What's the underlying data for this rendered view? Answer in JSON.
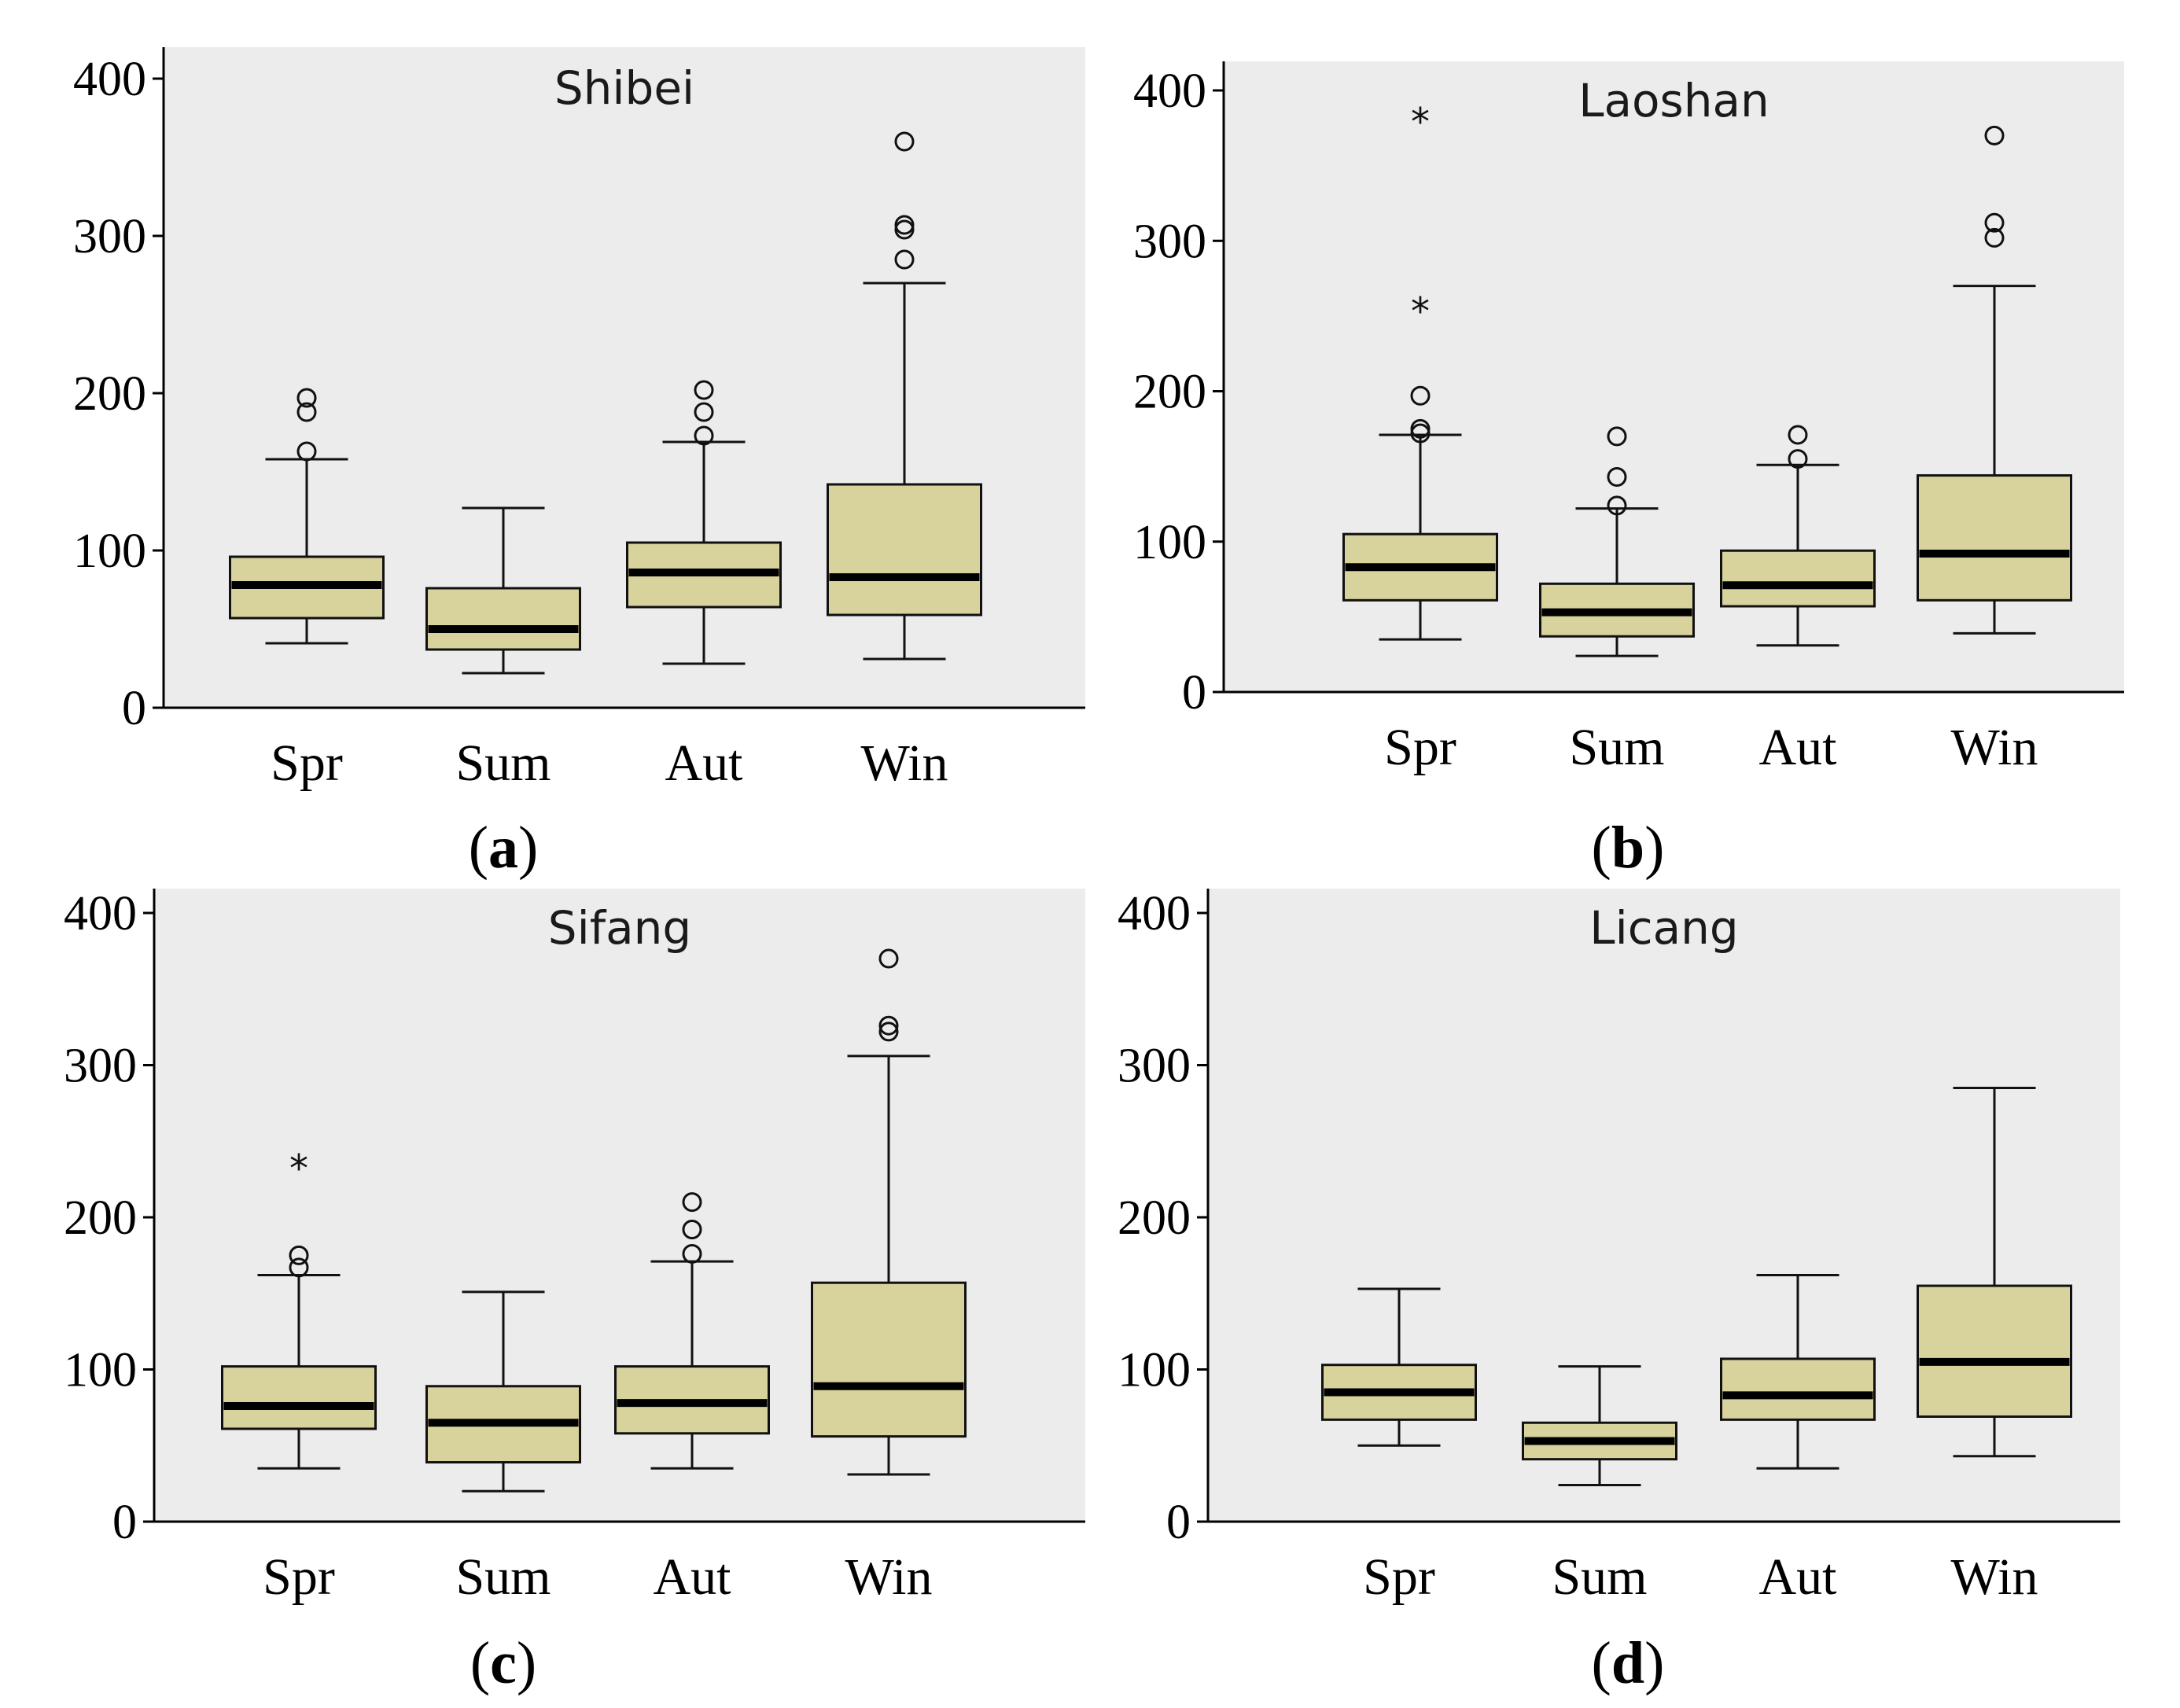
{
  "chart_data": [
    {
      "type": "boxplot",
      "panel_label": "a",
      "title": "Shibei",
      "categories": [
        "Spr",
        "Sum",
        "Aut",
        "Win"
      ],
      "yticks": [
        "0",
        "100",
        "200",
        "300",
        "400"
      ],
      "ylim": [
        0,
        400
      ],
      "boxes": [
        {
          "name": "Spr",
          "min": 41,
          "q1": 57,
          "median": 78,
          "q3": 96,
          "max": 158,
          "outliers": [
            163,
            188,
            197
          ],
          "extremes": []
        },
        {
          "name": "Sum",
          "min": 22,
          "q1": 37,
          "median": 50,
          "q3": 76,
          "max": 127,
          "outliers": [],
          "extremes": []
        },
        {
          "name": "Aut",
          "min": 28,
          "q1": 64,
          "median": 86,
          "q3": 105,
          "max": 169,
          "outliers": [
            173,
            188,
            202
          ],
          "extremes": []
        },
        {
          "name": "Win",
          "min": 31,
          "q1": 59,
          "median": 83,
          "q3": 142,
          "max": 270,
          "outliers": [
            285,
            304,
            307,
            360
          ],
          "extremes": []
        }
      ]
    },
    {
      "type": "boxplot",
      "panel_label": "b",
      "title": "Laoshan",
      "categories": [
        "Spr",
        "Sum",
        "Aut",
        "Win"
      ],
      "yticks": [
        "0",
        "100",
        "200",
        "300",
        "400"
      ],
      "ylim": [
        0,
        400
      ],
      "boxes": [
        {
          "name": "Spr",
          "min": 35,
          "q1": 61,
          "median": 83,
          "q3": 105,
          "max": 171,
          "outliers": [
            172,
            175,
            197
          ],
          "extremes": [
            256,
            382
          ]
        },
        {
          "name": "Sum",
          "min": 24,
          "q1": 37,
          "median": 53,
          "q3": 72,
          "max": 122,
          "outliers": [
            124,
            143,
            170
          ],
          "extremes": []
        },
        {
          "name": "Aut",
          "min": 31,
          "q1": 57,
          "median": 71,
          "q3": 94,
          "max": 151,
          "outliers": [
            155,
            171
          ],
          "extremes": []
        },
        {
          "name": "Win",
          "min": 39,
          "q1": 61,
          "median": 92,
          "q3": 144,
          "max": 270,
          "outliers": [
            302,
            312,
            370
          ],
          "extremes": []
        }
      ]
    },
    {
      "type": "boxplot",
      "panel_label": "c",
      "title": "Sifang",
      "categories": [
        "Spr",
        "Sum",
        "Aut",
        "Win"
      ],
      "yticks": [
        "0",
        "100",
        "200",
        "300",
        "400"
      ],
      "ylim": [
        0,
        400
      ],
      "boxes": [
        {
          "name": "Spr",
          "min": 35,
          "q1": 61,
          "median": 76,
          "q3": 102,
          "max": 162,
          "outliers": [
            167,
            175
          ],
          "extremes": [
            235
          ]
        },
        {
          "name": "Sum",
          "min": 20,
          "q1": 39,
          "median": 65,
          "q3": 89,
          "max": 151,
          "outliers": [],
          "extremes": []
        },
        {
          "name": "Aut",
          "min": 35,
          "q1": 58,
          "median": 78,
          "q3": 102,
          "max": 171,
          "outliers": [
            176,
            192,
            210
          ],
          "extremes": []
        },
        {
          "name": "Win",
          "min": 31,
          "q1": 56,
          "median": 89,
          "q3": 157,
          "max": 306,
          "outliers": [
            322,
            326,
            370
          ],
          "extremes": []
        }
      ]
    },
    {
      "type": "boxplot",
      "panel_label": "d",
      "title": "Licang",
      "categories": [
        "Spr",
        "Sum",
        "Aut",
        "Win"
      ],
      "yticks": [
        "0",
        "100",
        "200",
        "300",
        "400"
      ],
      "ylim": [
        0,
        400
      ],
      "boxes": [
        {
          "name": "Spr",
          "min": 50,
          "q1": 67,
          "median": 85,
          "q3": 103,
          "max": 153,
          "outliers": [],
          "extremes": []
        },
        {
          "name": "Sum",
          "min": 24,
          "q1": 41,
          "median": 53,
          "q3": 65,
          "max": 102,
          "outliers": [],
          "extremes": []
        },
        {
          "name": "Aut",
          "min": 35,
          "q1": 67,
          "median": 83,
          "q3": 107,
          "max": 162,
          "outliers": [],
          "extremes": []
        },
        {
          "name": "Win",
          "min": 43,
          "q1": 69,
          "median": 105,
          "q3": 155,
          "max": 285,
          "outliers": [],
          "extremes": []
        }
      ]
    }
  ],
  "labels": {
    "a": "a",
    "b": "b",
    "c": "c",
    "d": "d"
  }
}
